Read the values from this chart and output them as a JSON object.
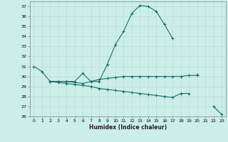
{
  "xlabel": "Humidex (Indice chaleur)",
  "background_color": "#cceee8",
  "line_color": "#1a7068",
  "x": [
    0,
    1,
    2,
    3,
    4,
    5,
    6,
    7,
    8,
    9,
    10,
    11,
    12,
    13,
    14,
    15,
    16,
    17,
    18,
    19,
    20,
    21,
    22,
    23
  ],
  "series1": [
    31.0,
    30.5,
    29.5,
    29.5,
    29.5,
    29.5,
    30.3,
    29.5,
    29.5,
    31.2,
    33.2,
    34.5,
    36.3,
    37.1,
    37.0,
    36.5,
    35.2,
    33.8,
    null,
    null,
    30.2,
    null,
    null,
    null
  ],
  "series2": [
    null,
    null,
    29.5,
    29.5,
    29.5,
    29.4,
    29.3,
    29.5,
    29.7,
    29.8,
    29.9,
    30.0,
    30.0,
    30.0,
    30.0,
    30.0,
    30.0,
    30.0,
    30.0,
    30.1,
    30.1,
    null,
    null,
    null
  ],
  "series3": [
    null,
    null,
    29.5,
    29.4,
    29.3,
    29.2,
    29.1,
    29.0,
    28.8,
    28.7,
    28.6,
    28.5,
    28.4,
    28.3,
    28.2,
    28.1,
    28.0,
    27.9,
    28.3,
    28.3,
    null,
    null,
    27.0,
    26.2
  ],
  "ylim": [
    26,
    37.5
  ],
  "yticks": [
    26,
    27,
    28,
    29,
    30,
    31,
    32,
    33,
    34,
    35,
    36,
    37
  ],
  "xticks": [
    0,
    1,
    2,
    3,
    4,
    5,
    6,
    7,
    8,
    9,
    10,
    11,
    12,
    13,
    14,
    15,
    16,
    17,
    18,
    19,
    20,
    21,
    22,
    23
  ],
  "grid_color": "#b8dcd8",
  "marker": "+"
}
